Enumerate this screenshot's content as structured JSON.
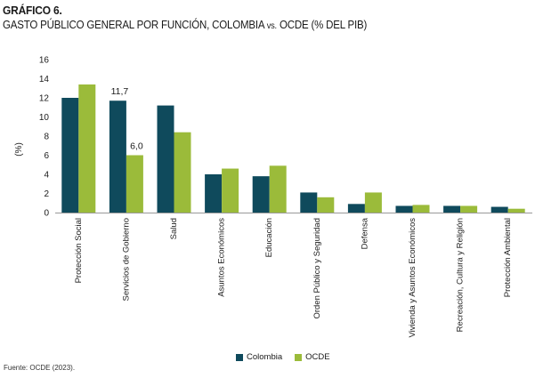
{
  "header": {
    "title": "GRÁFICO 6.",
    "subtitle_main": "GASTO PÚBLICO GENERAL POR FUNCIÓN, COLOMBIA ",
    "subtitle_vs": "vs.",
    "subtitle_end": " OCDE (%  DEL PIB)"
  },
  "source": "Fuente: OCDE (2023).",
  "colors": {
    "colombia": "#0f4a5c",
    "ocde": "#9bbb3a",
    "axis": "#999999",
    "text": "#1a1a1a"
  },
  "chart_data": {
    "type": "bar",
    "categories": [
      "Protección Social",
      "Servicios de Gobierno",
      "Salud",
      "Asuntos Económicos",
      "Educación",
      "Orden Público y Seguridad",
      "Defensa",
      "Vivienda y Asuntos Económicos",
      "Recreación, Cultura y Religión",
      "Protección Ambiental"
    ],
    "series": [
      {
        "name": "Colombia",
        "values": [
          12.0,
          11.7,
          11.2,
          4.0,
          3.8,
          2.1,
          0.9,
          0.7,
          0.7,
          0.6
        ]
      },
      {
        "name": "OCDE",
        "values": [
          13.4,
          6.0,
          8.4,
          4.6,
          4.9,
          1.6,
          2.1,
          0.8,
          0.7,
          0.4
        ]
      }
    ],
    "data_labels": [
      {
        "series": 0,
        "index": 1,
        "text": "11,7"
      },
      {
        "series": 1,
        "index": 1,
        "text": "6,0"
      }
    ],
    "ylabel": "(%)",
    "ylim": [
      0,
      16
    ],
    "yticks": [
      0,
      2,
      4,
      6,
      8,
      10,
      12,
      14,
      16
    ],
    "grid": false,
    "legend": "bottom"
  }
}
